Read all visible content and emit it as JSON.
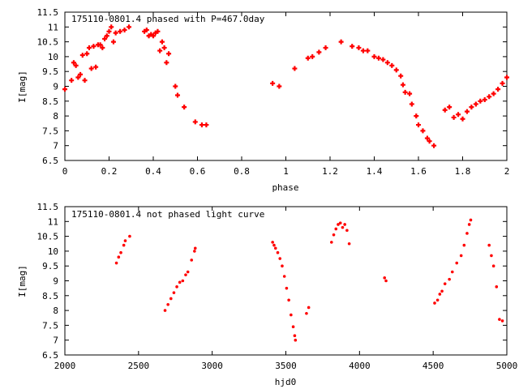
{
  "colors": {
    "points": "#ff0000",
    "axes": "#000000",
    "background": "#ffffff"
  },
  "chart_data": [
    {
      "type": "scatter",
      "title": "175110-0801.4 phased with P=467.0day",
      "xlabel": "phase",
      "ylabel": "I[mag]",
      "xlim": [
        0,
        2
      ],
      "ylim": [
        11.5,
        6.5
      ],
      "y_inverted": true,
      "grid": false,
      "marker": "plus",
      "xticks": [
        "0",
        "0.2",
        "0.4",
        "0.6",
        "0.8",
        "1",
        "1.2",
        "1.4",
        "1.6",
        "1.8",
        "2"
      ],
      "yticks": [
        "6.5",
        "7",
        "7.5",
        "8",
        "8.5",
        "9",
        "9.5",
        "10",
        "10.5",
        "11",
        "11.5"
      ],
      "x": [
        0.0,
        0.03,
        0.04,
        0.05,
        0.06,
        0.07,
        0.08,
        0.09,
        0.1,
        0.11,
        0.12,
        0.13,
        0.14,
        0.15,
        0.16,
        0.17,
        0.18,
        0.19,
        0.2,
        0.21,
        0.22,
        0.23,
        0.25,
        0.27,
        0.29,
        0.36,
        0.37,
        0.38,
        0.39,
        0.4,
        0.41,
        0.42,
        0.43,
        0.44,
        0.45,
        0.46,
        0.47,
        0.5,
        0.51,
        0.54,
        0.59,
        0.62,
        0.64,
        0.94,
        0.97,
        1.04,
        1.1,
        1.12,
        1.15,
        1.18,
        1.25,
        1.3,
        1.33,
        1.35,
        1.37,
        1.4,
        1.42,
        1.44,
        1.46,
        1.48,
        1.5,
        1.52,
        1.53,
        1.54,
        1.56,
        1.57,
        1.59,
        1.6,
        1.62,
        1.64,
        1.65,
        1.67,
        1.72,
        1.74,
        1.76,
        1.78,
        1.8,
        1.82,
        1.84,
        1.86,
        1.88,
        1.9,
        1.92,
        1.94,
        1.96,
        1.98,
        2.0
      ],
      "y": [
        8.9,
        9.2,
        9.8,
        9.7,
        9.3,
        9.4,
        10.05,
        9.2,
        10.1,
        10.3,
        9.6,
        10.35,
        9.65,
        10.4,
        10.4,
        10.3,
        10.6,
        10.7,
        10.85,
        11.0,
        10.5,
        10.8,
        10.85,
        10.9,
        11.0,
        10.85,
        10.9,
        10.7,
        10.75,
        10.7,
        10.8,
        10.85,
        10.2,
        10.5,
        10.3,
        9.8,
        10.1,
        9.0,
        8.7,
        8.3,
        7.8,
        7.7,
        7.7,
        9.1,
        9.0,
        9.6,
        9.95,
        10.0,
        10.15,
        10.3,
        10.5,
        10.35,
        10.3,
        10.2,
        10.2,
        10.0,
        9.95,
        9.9,
        9.8,
        9.7,
        9.55,
        9.35,
        9.05,
        8.8,
        8.75,
        8.4,
        8.0,
        7.7,
        7.5,
        7.25,
        7.15,
        7.0,
        8.2,
        8.3,
        7.95,
        8.05,
        7.9,
        8.15,
        8.3,
        8.4,
        8.5,
        8.55,
        8.65,
        8.75,
        8.9,
        9.1,
        9.3
      ]
    },
    {
      "type": "scatter",
      "title": "175110-0801.4 not phased light curve",
      "xlabel": "hjd0",
      "ylabel": "I[mag]",
      "xlim": [
        2000,
        5000
      ],
      "ylim": [
        11.5,
        6.5
      ],
      "y_inverted": true,
      "grid": false,
      "marker": "dot",
      "xticks": [
        "2000",
        "2500",
        "3000",
        "3500",
        "4000",
        "4500",
        "5000"
      ],
      "yticks": [
        "6.5",
        "7",
        "7.5",
        "8",
        "8.5",
        "9",
        "9.5",
        "10",
        "10.5",
        "11",
        "11.5"
      ],
      "x": [
        2350,
        2365,
        2380,
        2400,
        2410,
        2440,
        2680,
        2700,
        2720,
        2740,
        2760,
        2780,
        2800,
        2820,
        2835,
        2860,
        2880,
        2885,
        3410,
        3420,
        3430,
        3445,
        3460,
        3475,
        3490,
        3505,
        3520,
        3535,
        3550,
        3560,
        3565,
        3640,
        3655,
        3810,
        3825,
        3840,
        3855,
        3870,
        3885,
        3900,
        3915,
        3930,
        4170,
        4180,
        4510,
        4530,
        4545,
        4560,
        4580,
        4610,
        4630,
        4660,
        4690,
        4710,
        4730,
        4745,
        4755,
        4880,
        4895,
        4910,
        4930,
        4950,
        4970
      ],
      "y": [
        9.6,
        9.8,
        9.95,
        10.2,
        10.35,
        10.5,
        8.0,
        8.2,
        8.4,
        8.6,
        8.8,
        8.95,
        9.0,
        9.2,
        9.3,
        9.7,
        10.0,
        10.1,
        10.3,
        10.2,
        10.1,
        9.95,
        9.75,
        9.5,
        9.15,
        8.75,
        8.35,
        7.85,
        7.45,
        7.15,
        7.0,
        7.9,
        8.1,
        10.3,
        10.55,
        10.75,
        10.9,
        10.95,
        10.8,
        10.9,
        10.7,
        10.25,
        9.1,
        9.0,
        8.25,
        8.35,
        8.55,
        8.65,
        8.9,
        9.05,
        9.3,
        9.6,
        9.85,
        10.2,
        10.6,
        10.9,
        11.05,
        10.2,
        9.85,
        9.5,
        8.8,
        7.7,
        7.65
      ]
    }
  ]
}
